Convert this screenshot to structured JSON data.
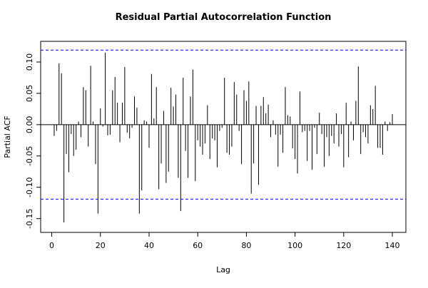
{
  "chart_data": {
    "type": "pacf",
    "title": "Residual Partial Autocorrelation Function",
    "x_label": "Lag",
    "y_label": "Partial ACF",
    "x": [
      1,
      2,
      3,
      4,
      5,
      6,
      7,
      8,
      9,
      10,
      11,
      12,
      13,
      14,
      15,
      16,
      17,
      18,
      19,
      20,
      21,
      22,
      23,
      24,
      25,
      26,
      27,
      28,
      29,
      30,
      31,
      32,
      33,
      34,
      35,
      36,
      37,
      38,
      39,
      40,
      41,
      42,
      43,
      44,
      45,
      46,
      47,
      48,
      49,
      50,
      51,
      52,
      53,
      54,
      55,
      56,
      57,
      58,
      59,
      60,
      61,
      62,
      63,
      64,
      65,
      66,
      67,
      68,
      69,
      70,
      71,
      72,
      73,
      74,
      75,
      76,
      77,
      78,
      79,
      80,
      81,
      82,
      83,
      84,
      85,
      86,
      87,
      88,
      89,
      90,
      91,
      92,
      93,
      94,
      95,
      96,
      97,
      98,
      99,
      100,
      101,
      102,
      103,
      104,
      105,
      106,
      107,
      108,
      109,
      110,
      111,
      112,
      113,
      114,
      115,
      116,
      117,
      118,
      119,
      120,
      121,
      122,
      123,
      124,
      125,
      126,
      127,
      128,
      129,
      130,
      131,
      132,
      133,
      134,
      135,
      136,
      137,
      138,
      139,
      140
    ],
    "values": [
      -0.018,
      -0.01,
      0.098,
      0.082,
      -0.156,
      -0.047,
      -0.076,
      -0.015,
      -0.05,
      -0.04,
      0.005,
      -0.02,
      0.06,
      0.055,
      -0.035,
      0.094,
      0.005,
      -0.063,
      -0.142,
      0.026,
      -0.003,
      0.115,
      -0.017,
      -0.016,
      0.055,
      0.076,
      0.035,
      -0.028,
      0.035,
      0.092,
      -0.013,
      -0.022,
      -0.005,
      0.045,
      0.027,
      -0.142,
      -0.105,
      0.007,
      0.005,
      -0.037,
      0.081,
      0.01,
      0.06,
      -0.103,
      -0.062,
      0.022,
      -0.093,
      -0.075,
      0.059,
      0.029,
      0.048,
      -0.085,
      -0.138,
      0.075,
      -0.042,
      -0.085,
      0.045,
      0.088,
      -0.09,
      -0.025,
      -0.035,
      -0.048,
      -0.03,
      0.031,
      -0.055,
      -0.022,
      -0.025,
      -0.068,
      -0.01,
      -0.005,
      0.075,
      -0.045,
      -0.048,
      -0.035,
      0.068,
      0.048,
      -0.01,
      -0.063,
      0.055,
      0.038,
      0.069,
      -0.11,
      -0.062,
      0.03,
      -0.096,
      0.03,
      0.044,
      0.018,
      0.032,
      -0.02,
      0.007,
      -0.016,
      -0.067,
      -0.016,
      -0.045,
      0.06,
      0.015,
      0.013,
      -0.038,
      -0.055,
      -0.078,
      0.053,
      -0.012,
      -0.01,
      -0.058,
      -0.01,
      -0.072,
      -0.005,
      -0.047,
      0.019,
      -0.015,
      -0.067,
      -0.02,
      -0.05,
      -0.018,
      -0.03,
      0.018,
      -0.035,
      -0.015,
      -0.068,
      0.035,
      -0.052,
      0.005,
      -0.025,
      0.038,
      0.093,
      -0.047,
      -0.012,
      -0.02,
      -0.03,
      0.031,
      0.025,
      0.062,
      -0.037,
      -0.037,
      -0.048,
      0.005,
      -0.01,
      0.004,
      0.017
    ],
    "color": "#000000",
    "conf_limits": [
      0.119,
      -0.119
    ],
    "conf_color": "#0000ff",
    "xlim": [
      -4.56,
      145.56
    ],
    "ylim": [
      -0.172,
      0.133
    ],
    "xticks": [
      0,
      20,
      40,
      60,
      80,
      100,
      120,
      140
    ],
    "yticks": [
      {
        "value": -0.15,
        "label": "-0.15"
      },
      {
        "value": -0.1,
        "label": "-0.10"
      },
      {
        "value": -0.05,
        "label": "-0.05"
      },
      {
        "value": 0,
        "label": "0.00"
      },
      {
        "value": 0.05,
        "label": "0.05"
      },
      {
        "value": 0.1,
        "label": "0.10"
      }
    ]
  }
}
